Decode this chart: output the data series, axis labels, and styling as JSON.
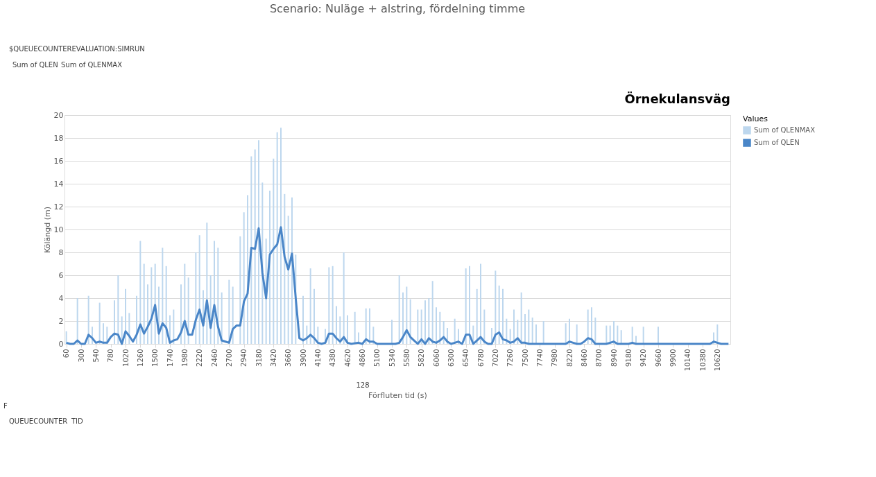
{
  "chart_data": {
    "type": "bar",
    "title": "Scenario: Nuläge + alstring, fördelning timme",
    "subtitle": "Örnekulansväg",
    "xlabel": "Förfluten tid (s)",
    "ylabel": "Kölängd (m)",
    "legend_title": "Values",
    "legend": "right",
    "grid": "y",
    "xlim": [
      30,
      10830
    ],
    "ylim": [
      0,
      20
    ],
    "yticks": [
      0,
      2,
      4,
      6,
      8,
      10,
      12,
      14,
      16,
      18,
      20
    ],
    "xticks": [
      60,
      300,
      540,
      780,
      1020,
      1260,
      1500,
      1740,
      1980,
      2220,
      2460,
      2700,
      2940,
      3180,
      3420,
      3660,
      3900,
      4140,
      4380,
      4620,
      4860,
      5100,
      5340,
      5580,
      5820,
      6060,
      6300,
      6540,
      6780,
      7020,
      7260,
      7500,
      7740,
      7980,
      8220,
      8460,
      8700,
      8940,
      9180,
      9420,
      9660,
      9900,
      10140,
      10380,
      10620
    ],
    "annotations": [
      "$QUEUECOUNTEREVALUATION:SIMRUN",
      "Sum of QLEN",
      "Sum of QLENMAX",
      "128",
      "F",
      "QUEUECOUNTER",
      "TID"
    ],
    "series": [
      {
        "name": "Sum of QLENMAX",
        "color": "#bdd7ee",
        "x": [
          60,
          240,
          420,
          480,
          600,
          660,
          720,
          840,
          900,
          960,
          1020,
          1080,
          1200,
          1260,
          1320,
          1380,
          1440,
          1500,
          1560,
          1620,
          1680,
          1740,
          1800,
          1920,
          1980,
          2040,
          2160,
          2220,
          2280,
          2340,
          2400,
          2460,
          2520,
          2580,
          2700,
          2760,
          2880,
          2940,
          3000,
          3060,
          3120,
          3180,
          3240,
          3300,
          3360,
          3420,
          3480,
          3540,
          3600,
          3660,
          3720,
          3780,
          3900,
          3960,
          4020,
          4080,
          4140,
          4260,
          4320,
          4380,
          4440,
          4500,
          4560,
          4620,
          4740,
          4800,
          4920,
          4980,
          5040,
          5340,
          5460,
          5520,
          5580,
          5640,
          5760,
          5820,
          5880,
          5940,
          6000,
          6060,
          6120,
          6180,
          6240,
          6360,
          6420,
          6540,
          6600,
          6660,
          6720,
          6780,
          6840,
          6960,
          7020,
          7080,
          7140,
          7200,
          7260,
          7320,
          7380,
          7440,
          7500,
          7560,
          7620,
          7680,
          7800,
          8160,
          8220,
          8340,
          8520,
          8580,
          8640,
          8820,
          8880,
          8940,
          9000,
          9060,
          9240,
          9300,
          9420,
          9660,
          10560,
          10620
        ],
        "values": [
          1.1,
          4.0,
          4.2,
          1.5,
          3.6,
          1.8,
          1.5,
          3.8,
          6.0,
          2.4,
          4.8,
          2.7,
          4.2,
          9.0,
          7.0,
          5.2,
          6.7,
          7.0,
          5.0,
          8.4,
          6.8,
          2.5,
          3.0,
          5.2,
          7.0,
          5.8,
          8.0,
          9.5,
          4.7,
          10.6,
          6.0,
          9.0,
          8.4,
          4.5,
          5.6,
          5.0,
          9.4,
          11.5,
          13.0,
          16.4,
          17.0,
          17.8,
          14.1,
          9.2,
          13.4,
          16.2,
          18.5,
          18.9,
          13.1,
          11.2,
          12.8,
          7.8,
          4.2,
          1.6,
          6.6,
          4.8,
          1.5,
          1.3,
          6.7,
          6.8,
          3.3,
          2.4,
          8.0,
          2.5,
          2.8,
          1.0,
          3.1,
          3.1,
          1.5,
          2.1,
          6.0,
          4.5,
          5.0,
          3.9,
          3.0,
          3.0,
          3.8,
          4.0,
          5.5,
          3.2,
          2.8,
          2.0,
          1.4,
          2.2,
          1.3,
          6.6,
          6.8,
          1.6,
          4.8,
          7.0,
          3.0,
          1.4,
          6.4,
          5.1,
          4.8,
          2.2,
          1.3,
          3.0,
          2.1,
          4.5,
          2.6,
          3.0,
          2.3,
          1.7,
          2.0,
          1.8,
          2.2,
          1.7,
          3.0,
          3.2,
          2.3,
          1.6,
          1.6,
          2.0,
          1.6,
          1.2,
          1.5,
          0.7,
          1.5,
          1.5,
          1.0,
          1.7
        ]
      },
      {
        "name": "Sum of QLEN",
        "type": "line",
        "color": "#4a86c8",
        "x": [
          60,
          120,
          180,
          240,
          300,
          360,
          420,
          480,
          540,
          600,
          660,
          720,
          780,
          840,
          900,
          960,
          1020,
          1080,
          1140,
          1200,
          1260,
          1320,
          1380,
          1440,
          1500,
          1560,
          1620,
          1680,
          1740,
          1800,
          1860,
          1920,
          1980,
          2040,
          2100,
          2160,
          2220,
          2280,
          2340,
          2400,
          2460,
          2520,
          2580,
          2640,
          2700,
          2760,
          2820,
          2880,
          2940,
          3000,
          3060,
          3120,
          3180,
          3240,
          3300,
          3360,
          3420,
          3480,
          3540,
          3600,
          3660,
          3720,
          3780,
          3840,
          3900,
          3960,
          4020,
          4080,
          4140,
          4200,
          4260,
          4320,
          4380,
          4440,
          4500,
          4560,
          4620,
          4680,
          4800,
          4860,
          4920,
          4980,
          5040,
          5100,
          5400,
          5460,
          5520,
          5580,
          5640,
          5700,
          5760,
          5820,
          5880,
          5940,
          6000,
          6060,
          6120,
          6180,
          6240,
          6300,
          6360,
          6420,
          6480,
          6540,
          6600,
          6660,
          6720,
          6780,
          6840,
          6900,
          6960,
          7020,
          7080,
          7140,
          7200,
          7260,
          7320,
          7380,
          7440,
          7500,
          7560,
          8160,
          8220,
          8280,
          8340,
          8400,
          8460,
          8520,
          8580,
          8640,
          8820,
          8880,
          8940,
          9000,
          9180,
          9240,
          9300,
          10500,
          10560,
          10620,
          10680,
          10800
        ],
        "values": [
          0.1,
          0,
          0,
          0.3,
          0,
          0,
          0.8,
          0.5,
          0.1,
          0.2,
          0.1,
          0.1,
          0.6,
          0.9,
          0.8,
          0,
          1.1,
          0.7,
          0.2,
          0.8,
          1.7,
          0.9,
          1.5,
          2.2,
          3.4,
          0.9,
          1.8,
          1.4,
          0.1,
          0.3,
          0.4,
          1.0,
          2.0,
          0.8,
          0.8,
          2.1,
          3.0,
          1.6,
          3.8,
          1.4,
          3.4,
          1.5,
          0.3,
          0.2,
          0.1,
          1.3,
          1.6,
          1.6,
          3.7,
          4.4,
          8.4,
          8.3,
          10.1,
          6.2,
          4.0,
          7.8,
          8.3,
          8.7,
          10.2,
          7.6,
          6.5,
          7.9,
          4.0,
          0.5,
          0.3,
          0.5,
          0.8,
          0.5,
          0.1,
          0,
          0.1,
          0.9,
          0.9,
          0.5,
          0.2,
          0.6,
          0.1,
          0,
          0.1,
          0,
          0.4,
          0.2,
          0.2,
          0,
          0,
          0.1,
          0.6,
          1.2,
          0.6,
          0.3,
          0,
          0.4,
          0,
          0.5,
          0.2,
          0.1,
          0.3,
          0.6,
          0.2,
          0,
          0.1,
          0.2,
          0,
          0.8,
          0.8,
          0,
          0.3,
          0.6,
          0.2,
          0,
          0,
          0.8,
          1.0,
          0.4,
          0.3,
          0.1,
          0.2,
          0.5,
          0.1,
          0.1,
          0,
          0,
          0.2,
          0.1,
          0,
          0,
          0.2,
          0.5,
          0.4,
          0,
          0,
          0.1,
          0.2,
          0,
          0,
          0.1,
          0,
          0,
          0.2,
          0.1,
          0,
          0
        ]
      }
    ]
  }
}
